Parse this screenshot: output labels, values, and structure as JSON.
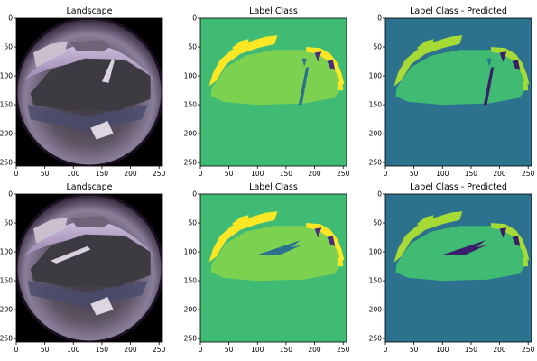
{
  "figure": {
    "colors": {
      "background_class": "#3fbb74",
      "road_class": "#7cd250",
      "sky_class": "#fde725",
      "object_class": "#472d7b",
      "sign_class": "#2c728e",
      "pred_background": "#2c728e",
      "pred_road": "#3fbb74",
      "pred_sky": "#a6db35",
      "pred_object": "#3b1f6b",
      "photo_border": "#000000"
    },
    "rows": [
      {
        "panels": [
          {
            "title": "Landscape",
            "kind": "photo",
            "variant": 0
          },
          {
            "title": "Label Class",
            "kind": "label",
            "variant": 0
          },
          {
            "title": "Label Class - Predicted",
            "kind": "predicted",
            "variant": 0
          }
        ]
      },
      {
        "panels": [
          {
            "title": "Landscape",
            "kind": "photo",
            "variant": 1
          },
          {
            "title": "Label Class",
            "kind": "label",
            "variant": 1
          },
          {
            "title": "Label Class - Predicted",
            "kind": "predicted",
            "variant": 1
          }
        ]
      }
    ],
    "x_ticks": [
      "0",
      "50",
      "100",
      "150",
      "200",
      "250"
    ],
    "x_tick_values": [
      0,
      50,
      100,
      150,
      200,
      250
    ],
    "y_ticks": [
      "0",
      "50",
      "100",
      "150",
      "200",
      "250"
    ],
    "y_tick_values": [
      0,
      50,
      100,
      150,
      200,
      250
    ],
    "image_size": 256
  }
}
